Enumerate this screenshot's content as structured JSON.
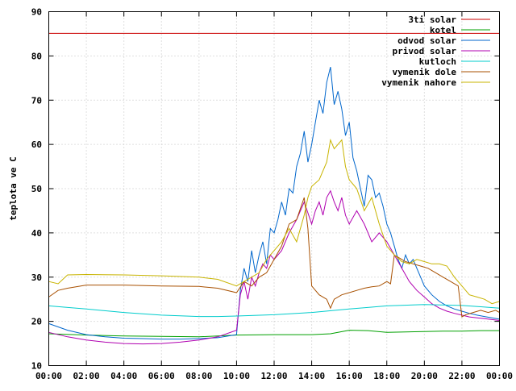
{
  "chart_data": {
    "type": "line",
    "title": "",
    "xlabel": "",
    "ylabel": "teplota ve C",
    "xlim": [
      0,
      24
    ],
    "ylim": [
      10,
      90
    ],
    "grid": true,
    "legend": "top-right",
    "x_ticks": [
      "00:00",
      "02:00",
      "04:00",
      "06:00",
      "08:00",
      "10:00",
      "12:00",
      "14:00",
      "16:00",
      "18:00",
      "20:00",
      "22:00",
      "00:00"
    ],
    "y_ticks": [
      "10",
      "20",
      "30",
      "40",
      "50",
      "60",
      "70",
      "80",
      "90"
    ],
    "series": [
      {
        "name": "3ti solar",
        "color": "#cc0000",
        "x": [
          0,
          24
        ],
        "y": [
          85.1,
          85.1
        ]
      },
      {
        "name": "kotel",
        "color": "#00a000",
        "x": [
          0,
          2,
          4,
          6,
          8,
          10,
          12,
          14,
          15,
          16,
          17,
          18,
          19,
          20,
          21,
          22,
          23,
          24
        ],
        "y": [
          17.2,
          16.9,
          16.7,
          16.6,
          16.5,
          16.9,
          17.0,
          17.0,
          17.2,
          18.0,
          17.9,
          17.5,
          17.6,
          17.7,
          17.8,
          17.8,
          17.9,
          17.9
        ]
      },
      {
        "name": "odvod solar",
        "color": "#0066cc",
        "x": [
          0,
          1,
          2,
          3,
          4,
          5,
          6,
          7,
          8,
          9,
          10,
          10.2,
          10.4,
          10.6,
          10.8,
          11.0,
          11.2,
          11.4,
          11.6,
          11.8,
          12.0,
          12.2,
          12.4,
          12.6,
          12.8,
          13.0,
          13.2,
          13.4,
          13.6,
          13.8,
          14.0,
          14.2,
          14.4,
          14.6,
          14.8,
          15.0,
          15.2,
          15.4,
          15.6,
          15.8,
          16.0,
          16.2,
          16.4,
          16.6,
          16.8,
          17.0,
          17.2,
          17.4,
          17.6,
          17.8,
          18.0,
          18.2,
          18.4,
          18.6,
          18.8,
          19.0,
          19.2,
          19.4,
          19.6,
          19.8,
          20.0,
          20.4,
          20.8,
          21.2,
          21.6,
          22.0,
          22.4,
          22.8,
          23.2,
          23.6,
          24.0
        ],
        "y": [
          19.5,
          18.0,
          17.0,
          16.5,
          16.2,
          16.1,
          16.0,
          16.0,
          16.1,
          16.3,
          17.0,
          27.0,
          32.0,
          29.0,
          36.0,
          31.0,
          35.0,
          38.0,
          33.0,
          41.0,
          40.0,
          43.0,
          47.0,
          44.0,
          50.0,
          49.0,
          55.0,
          58.0,
          63.0,
          56.0,
          60.0,
          65.0,
          70.0,
          67.0,
          74.0,
          77.5,
          69.0,
          72.0,
          68.0,
          62.0,
          65.0,
          57.0,
          54.0,
          50.0,
          46.0,
          53.0,
          52.0,
          48.0,
          49.0,
          46.0,
          42.0,
          40.0,
          37.0,
          34.0,
          32.0,
          35.0,
          33.0,
          34.0,
          32.0,
          30.0,
          28.0,
          26.0,
          24.5,
          23.5,
          22.8,
          22.3,
          21.8,
          21.4,
          21.1,
          20.8,
          20.5
        ]
      },
      {
        "name": "privod solar",
        "color": "#b000b0",
        "x": [
          0,
          1,
          2,
          3,
          4,
          5,
          6,
          7,
          8,
          9,
          10,
          10.2,
          10.4,
          10.6,
          10.8,
          11.0,
          11.2,
          11.4,
          11.6,
          11.8,
          12.0,
          12.4,
          12.8,
          13.2,
          13.6,
          14.0,
          14.2,
          14.4,
          14.6,
          14.8,
          15.0,
          15.2,
          15.4,
          15.6,
          15.8,
          16.0,
          16.4,
          16.8,
          17.2,
          17.6,
          18.0,
          18.4,
          18.8,
          19.2,
          19.6,
          20.0,
          20.4,
          20.8,
          21.2,
          21.6,
          22.0,
          22.4,
          22.8,
          23.2,
          23.6,
          24.0
        ],
        "y": [
          17.5,
          16.5,
          15.8,
          15.3,
          15.0,
          14.9,
          15.0,
          15.3,
          15.8,
          16.5,
          18.0,
          26.0,
          29.0,
          25.0,
          30.0,
          28.0,
          31.0,
          33.0,
          32.0,
          35.0,
          34.0,
          36.0,
          40.0,
          43.0,
          47.0,
          42.0,
          45.0,
          47.0,
          44.0,
          48.0,
          49.5,
          47.0,
          45.0,
          48.0,
          44.0,
          42.0,
          45.0,
          42.0,
          38.0,
          40.0,
          38.0,
          35.0,
          32.0,
          29.0,
          27.0,
          25.5,
          24.0,
          23.0,
          22.3,
          21.8,
          21.4,
          21.0,
          20.8,
          20.6,
          20.4,
          20.2
        ]
      },
      {
        "name": "kutloch",
        "color": "#00cccc",
        "x": [
          0,
          2,
          4,
          6,
          8,
          9,
          10,
          12,
          14,
          16,
          18,
          20,
          22,
          23,
          24
        ],
        "y": [
          23.5,
          22.8,
          22.0,
          21.4,
          21.1,
          21.1,
          21.2,
          21.5,
          22.0,
          22.8,
          23.5,
          23.8,
          23.6,
          23.3,
          23.0
        ]
      },
      {
        "name": "vymenik dole",
        "color": "#a85000",
        "x": [
          0,
          0.5,
          1,
          2,
          4,
          6,
          8,
          9,
          10,
          10.4,
          10.8,
          11.2,
          11.6,
          12.0,
          12.4,
          12.8,
          13.2,
          13.6,
          13.8,
          14.0,
          14.4,
          14.8,
          15.0,
          15.2,
          15.6,
          16.0,
          16.4,
          16.8,
          17.2,
          17.6,
          18.0,
          18.2,
          18.4,
          18.6,
          19.0,
          19.4,
          19.8,
          20.2,
          20.6,
          21.0,
          21.4,
          21.8,
          22.0,
          22.2,
          22.6,
          23.0,
          23.4,
          23.8,
          24.0
        ],
        "y": [
          25.5,
          27.0,
          27.5,
          28.2,
          28.2,
          28.0,
          27.9,
          27.5,
          26.5,
          29.0,
          28.0,
          30.0,
          31.0,
          34.0,
          37.0,
          42.0,
          43.0,
          48.0,
          41.0,
          28.0,
          26.0,
          25.0,
          23.0,
          25.0,
          26.0,
          26.5,
          27.0,
          27.5,
          27.8,
          28.0,
          29.0,
          28.5,
          35.0,
          34.5,
          33.5,
          33.0,
          32.5,
          32.0,
          31.0,
          30.0,
          29.0,
          28.0,
          21.0,
          21.5,
          22.0,
          22.5,
          22.0,
          22.5,
          22.0
        ]
      },
      {
        "name": "vymenik nahore",
        "color": "#c8b400",
        "x": [
          0,
          0.5,
          1,
          2,
          4,
          6,
          8,
          9,
          10,
          10.4,
          10.8,
          11.2,
          11.6,
          12.0,
          12.4,
          12.8,
          13.2,
          13.6,
          13.8,
          14.0,
          14.4,
          14.8,
          15.0,
          15.2,
          15.6,
          15.8,
          16.0,
          16.4,
          16.8,
          17.2,
          17.6,
          18.0,
          18.4,
          18.8,
          19.2,
          19.6,
          20.0,
          20.4,
          20.8,
          21.2,
          21.6,
          22.0,
          22.4,
          22.8,
          23.2,
          23.6,
          24.0
        ],
        "y": [
          29.0,
          28.5,
          30.5,
          30.6,
          30.5,
          30.3,
          30.0,
          29.5,
          28.0,
          29.0,
          30.0,
          31.0,
          34.0,
          36.0,
          38.0,
          41.0,
          38.0,
          44.0,
          48.0,
          50.5,
          52.0,
          56.0,
          61.0,
          59.0,
          61.0,
          55.0,
          52.0,
          50.0,
          45.0,
          48.0,
          42.0,
          37.0,
          35.0,
          33.5,
          33.0,
          34.0,
          33.5,
          33.0,
          33.0,
          32.5,
          30.0,
          28.0,
          26.0,
          25.5,
          25.0,
          24.0,
          24.5
        ]
      }
    ]
  }
}
